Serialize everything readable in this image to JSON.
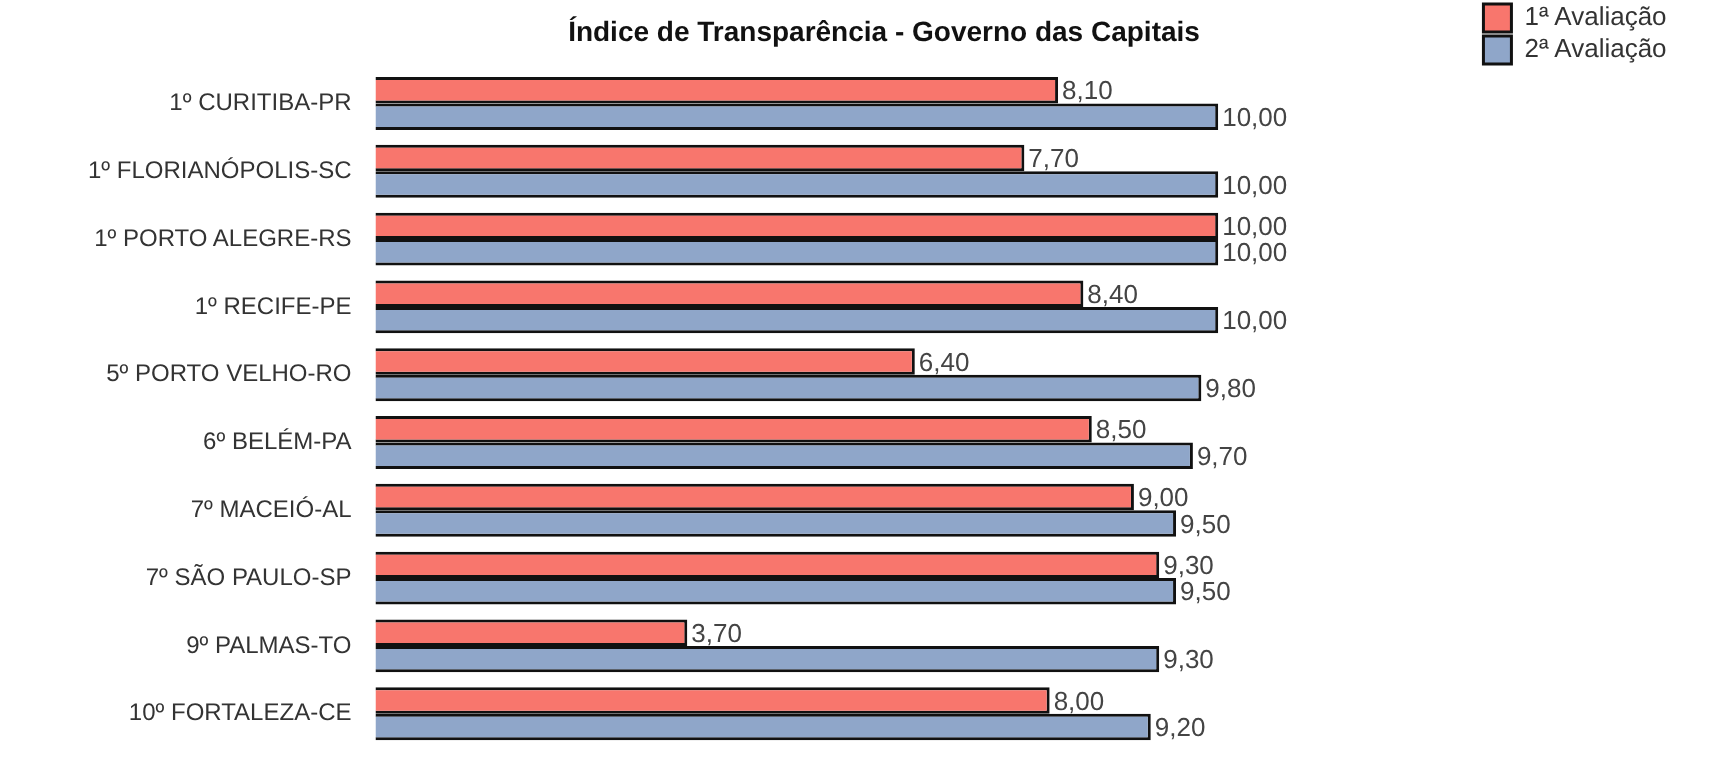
{
  "chart_data": {
    "type": "bar",
    "orientation": "horizontal",
    "title": "Índice de Transparência - Governo das Capitais",
    "legend": "top right",
    "categories": [
      "1º CURITIBA-PR",
      "1º FLORIANÓPOLIS-SC",
      "1º PORTO ALEGRE-RS",
      "1º RECIFE-PE",
      "5º PORTO VELHO-RO",
      "6º BELÉM-PA",
      "7º MACEIÓ-AL",
      "7º SÃO PAULO-SP",
      "9º PALMAS-TO",
      "10º FORTALEZA-CE"
    ],
    "series": [
      {
        "name": "1ª Avaliação",
        "color": "#f8766d",
        "values": [
          8.1,
          7.7,
          10,
          8.4,
          6.4,
          8.5,
          9.0,
          9.3,
          3.7,
          8.0
        ],
        "value_labels": [
          "8,10",
          "7,70",
          "10,00",
          "8,40",
          "6,40",
          "8,50",
          "9,00",
          "9,30",
          "3,70",
          "8,00"
        ]
      },
      {
        "name": "2ª Avaliação",
        "color": "#8fa6c9",
        "values": [
          10,
          10,
          10,
          10,
          9.8,
          9.7,
          9.5,
          9.5,
          9.3,
          9.2
        ],
        "value_labels": [
          "10,00",
          "10,00",
          "10,00",
          "10,00",
          "9,80",
          "9,70",
          "9,50",
          "9,50",
          "9,30",
          "9,20"
        ]
      }
    ]
  }
}
